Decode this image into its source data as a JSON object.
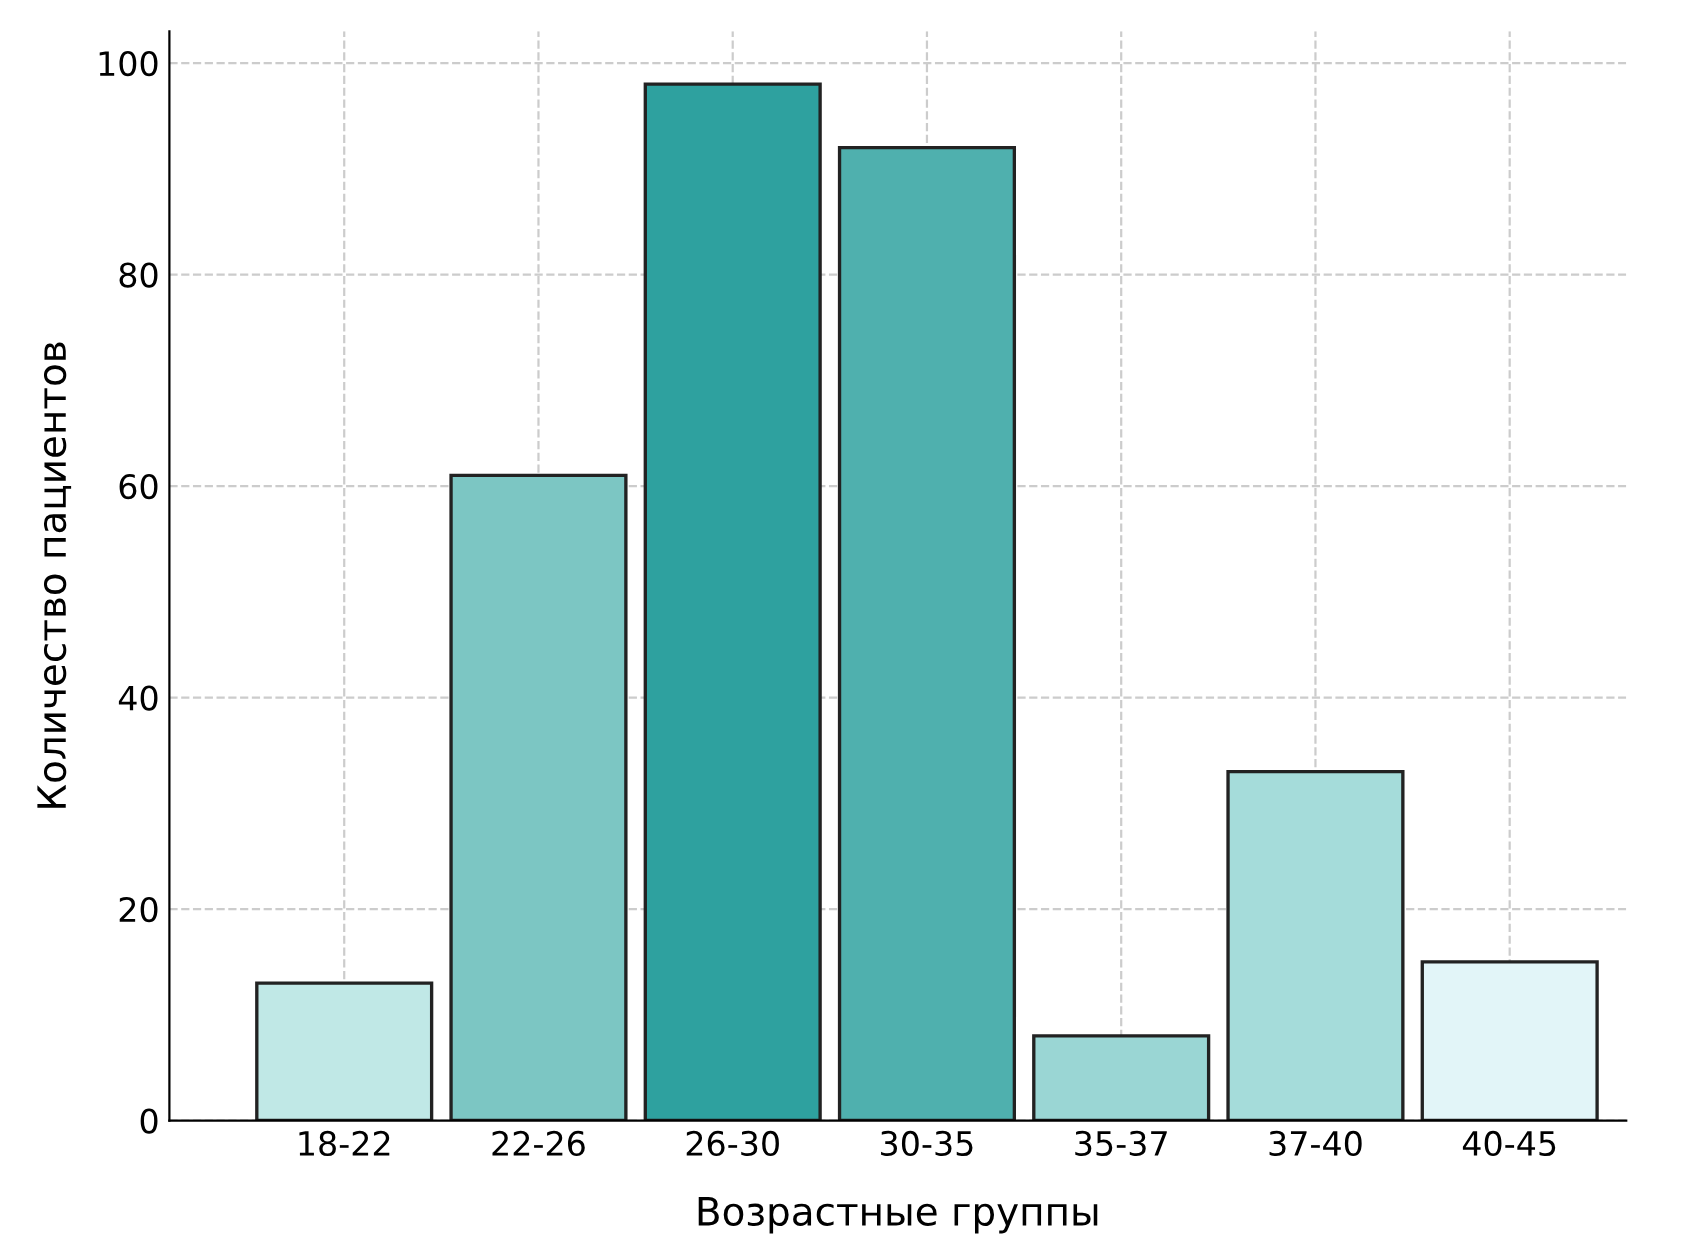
{
  "chart_data": {
    "type": "bar",
    "xlabel": "Возрастные группы",
    "ylabel": "Количество пациентов",
    "categories": [
      "18-22",
      "22-26",
      "26-30",
      "30-35",
      "35-37",
      "37-40",
      "40-45"
    ],
    "values": [
      13,
      61,
      98,
      92,
      8,
      33,
      15
    ],
    "colors": [
      "#c0e8e6",
      "#7cc6c3",
      "#2ea19f",
      "#4fb0ae",
      "#9ad6d4",
      "#a5dcda",
      "#e2f5f8"
    ],
    "ylim": [
      0,
      103
    ],
    "yticks": [
      0,
      20,
      40,
      60,
      80,
      100
    ],
    "grid": true
  }
}
